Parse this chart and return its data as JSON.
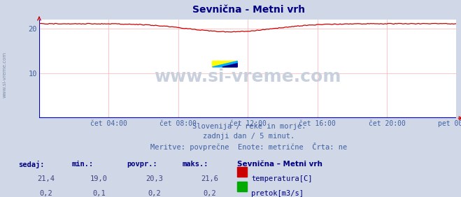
{
  "title": "Sevnična - Metni vrh",
  "title_color": "#000080",
  "bg_color": "#d0d8e8",
  "plot_bg_color": "#ffffff",
  "grid_color": "#ffb0b0",
  "x_labels": [
    "čet 04:00",
    "čet 08:00",
    "čet 12:00",
    "čet 16:00",
    "čet 20:00",
    "pet 00:00"
  ],
  "x_ticks": [
    4,
    8,
    12,
    16,
    20,
    24
  ],
  "x_min": 0,
  "x_max": 24,
  "y_min": 0,
  "y_max": 22,
  "y_ticks": [
    10,
    20
  ],
  "temp_color": "#cc0000",
  "flow_color": "#0000cc",
  "watermark_color": "#c8d0de",
  "watermark_text": "www.si-vreme.com",
  "subtitle_lines": [
    "Slovenija / reke in morje.",
    "zadnji dan / 5 minut.",
    "Meritve: povprečne  Enote: metrične  Črta: ne"
  ],
  "subtitle_color": "#4060a0",
  "table_label_color": "#000080",
  "table_value_color": "#404080",
  "table_headers": [
    "sedaj:",
    "min.:",
    "povpr.:",
    "maks.:"
  ],
  "table_station": "Sevnična – Metni vrh",
  "table_temp": [
    "21,4",
    "19,0",
    "20,3",
    "21,6"
  ],
  "table_flow": [
    "0,2",
    "0,1",
    "0,2",
    "0,2"
  ],
  "legend_temp_color": "#cc0000",
  "legend_flow_color": "#00aa00",
  "legend_temp_label": "temperatura[C]",
  "legend_flow_label": "pretok[m3/s]",
  "axis_arrow_color": "#cc0000",
  "left_text": "www.si-vreme.com",
  "left_text_color": "#8090a8",
  "logo_yellow": "#ffff00",
  "logo_blue_light": "#00aaff",
  "logo_blue_dark": "#000080"
}
